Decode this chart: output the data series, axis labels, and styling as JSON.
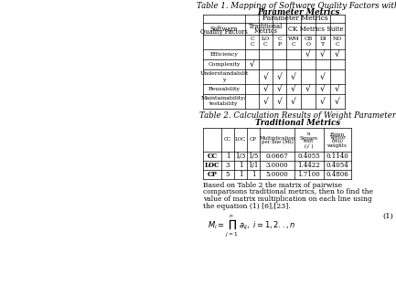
{
  "title1": "Table 1. Mapping of Software Quality Factors with",
  "title1_line2": "Parameter Metrics",
  "title2": "Table 2. Calculation Results of Weight Parameter",
  "title2_line2": "Traditional Metrics",
  "background_color": "#ffffff",
  "table1": {
    "rows": [
      [
        "Efficiency",
        "",
        "",
        "",
        "",
        "√",
        "√",
        "√"
      ],
      [
        "Complexity",
        "√",
        "",
        "",
        "",
        "",
        "",
        ""
      ],
      [
        "Understandabilit\ny",
        "",
        "√",
        "√",
        "√",
        "",
        "√",
        ""
      ],
      [
        "Reusability",
        "",
        "√",
        "√",
        "√",
        "√",
        "√",
        "√"
      ],
      [
        "Maintainability/\ntestability",
        "",
        "√",
        "√",
        "√",
        "",
        "√",
        "√"
      ]
    ]
  },
  "table2": {
    "col_headers": [
      "",
      "CC",
      "LOC",
      "CP",
      "Multiplication\nper line (Mi)",
      "n\nSquare\nroot\n(√ )",
      "Eigen\nVector\n(Wi)/\nweights"
    ],
    "rows": [
      [
        "CC",
        "1",
        "1/3",
        "1/5",
        "0.0667",
        "0.4055",
        "0.1140"
      ],
      [
        "LOC",
        "3",
        "1",
        "1/1",
        "3.0000",
        "1.4422",
        "0.4054"
      ],
      [
        "CP",
        "5",
        "1",
        "1",
        "5.0000",
        "1.7100",
        "0.4806"
      ]
    ]
  },
  "body_text": "Based on Table 2 the matrix of pairwise\ncomparisons traditional metrics, then to find the\nvalue of matrix multiplication on each line using\nthe equation (1) [6],[23].",
  "eq_number": "(1)"
}
